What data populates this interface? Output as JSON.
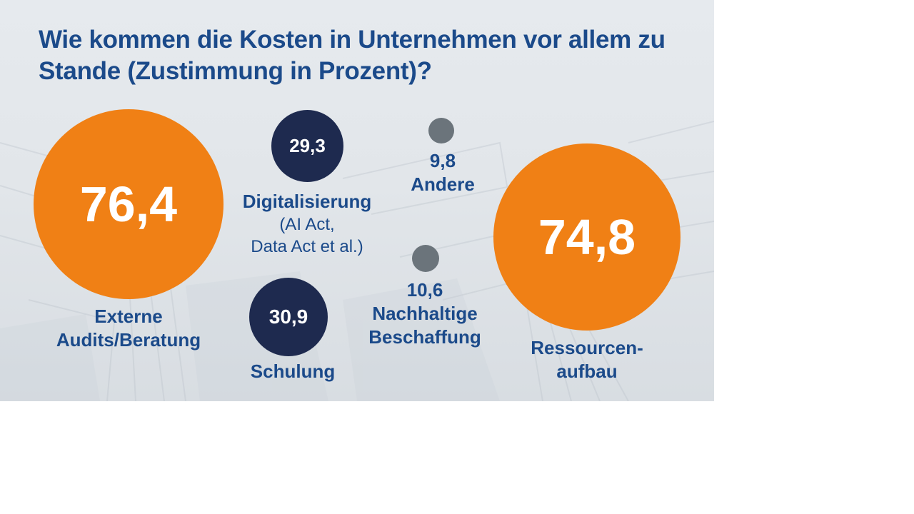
{
  "title": "Wie kommen die Kosten in Unternehmen vor allem zu Stande (Zustimmung in Prozent)?",
  "colors": {
    "orange": "#f08015",
    "navy": "#1e2a4f",
    "grey": "#6b747b",
    "text": "#1b4a8a"
  },
  "chart_data": {
    "type": "bubble",
    "title": "Wie kommen die Kosten in Unternehmen vor allem zu Stande (Zustimmung in Prozent)?",
    "items": [
      {
        "value_label": "76,4",
        "value": 76.4,
        "label_lines": [
          "Externe",
          "Audits/Beratung"
        ],
        "sub_lines": [],
        "color": "#f08015"
      },
      {
        "value_label": "29,3",
        "value": 29.3,
        "label_lines": [
          "Digitalisierung"
        ],
        "sub_lines": [
          "(AI Act,",
          "Data Act et al.)"
        ],
        "color": "#1e2a4f"
      },
      {
        "value_label": "30,9",
        "value": 30.9,
        "label_lines": [
          "Schulung"
        ],
        "sub_lines": [],
        "color": "#1e2a4f"
      },
      {
        "value_label": "9,8",
        "value": 9.8,
        "label_lines": [
          "Andere"
        ],
        "sub_lines": [],
        "color": "#6b747b"
      },
      {
        "value_label": "10,6",
        "value": 10.6,
        "label_lines": [
          "Nachhaltige",
          "Beschaffung"
        ],
        "sub_lines": [],
        "color": "#6b747b"
      },
      {
        "value_label": "74,8",
        "value": 74.8,
        "label_lines": [
          "Ressourcen-",
          "aufbau"
        ],
        "sub_lines": [],
        "color": "#f08015"
      }
    ]
  }
}
